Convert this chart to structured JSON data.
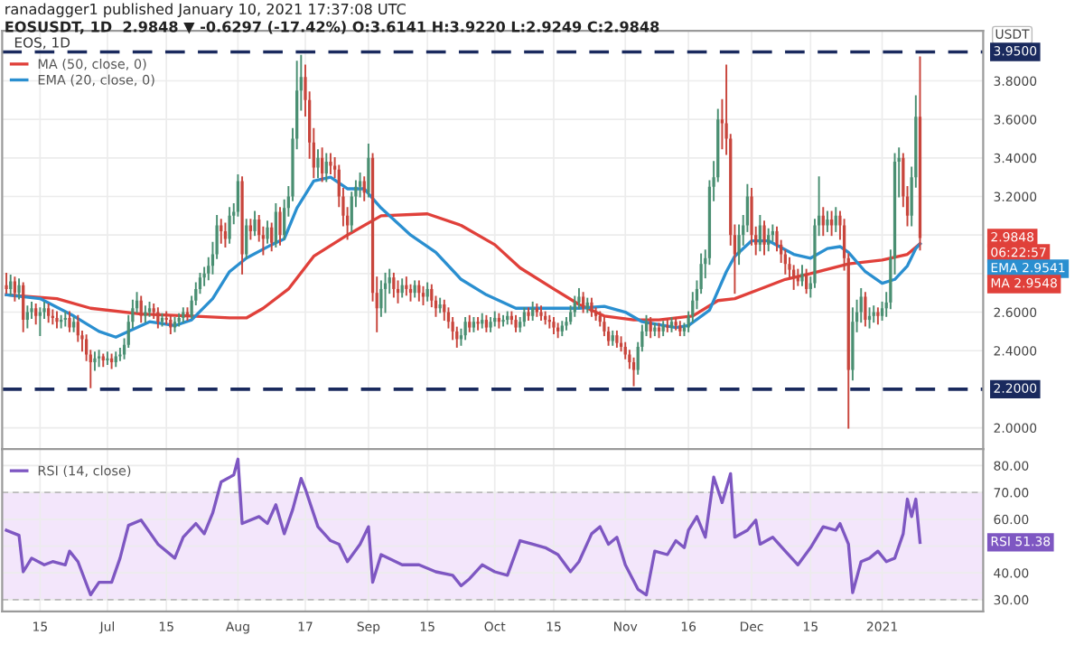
{
  "chart_data": [
    {
      "type": "candlestick",
      "title": "ranadagger1 published January 10, 2021 17:37:08 UTC",
      "subtitle": "EOSUSDT, 1D  2.9848 ▼ -0.6297 (-17.42%) O:3.6141 H:3.9220 L:2.9249 C:2.9848",
      "ylabel": "USDT",
      "x": [
        "2020-06-07",
        "2020-06-08",
        "2020-06-09",
        "2020-06-10",
        "2020-06-11",
        "2020-06-12",
        "2020-06-13",
        "2020-06-14",
        "2020-06-15",
        "2020-06-16",
        "2020-06-17",
        "2020-06-18",
        "2020-06-19",
        "2020-06-20",
        "2020-06-21",
        "2020-06-22",
        "2020-06-23",
        "2020-06-24",
        "2020-06-25",
        "2020-06-26",
        "2020-06-27",
        "2020-06-28",
        "2020-06-29",
        "2020-06-30",
        "2020-07-01",
        "2020-07-02",
        "2020-07-03",
        "2020-07-04",
        "2020-07-05",
        "2020-07-06",
        "2020-07-07",
        "2020-07-08",
        "2020-07-09",
        "2020-07-10",
        "2020-07-11",
        "2020-07-12",
        "2020-07-13",
        "2020-07-14",
        "2020-07-15",
        "2020-07-16",
        "2020-07-17",
        "2020-07-18",
        "2020-07-19",
        "2020-07-20",
        "2020-07-21",
        "2020-07-22",
        "2020-07-23",
        "2020-07-24",
        "2020-07-25",
        "2020-07-26",
        "2020-07-27",
        "2020-07-28",
        "2020-07-29",
        "2020-07-30",
        "2020-07-31",
        "2020-08-01",
        "2020-08-02",
        "2020-08-03",
        "2020-08-04",
        "2020-08-05",
        "2020-08-06",
        "2020-08-07",
        "2020-08-08",
        "2020-08-09",
        "2020-08-10",
        "2020-08-11",
        "2020-08-12",
        "2020-08-13",
        "2020-08-14",
        "2020-08-15",
        "2020-08-16",
        "2020-08-17",
        "2020-08-18",
        "2020-08-19",
        "2020-08-20",
        "2020-08-21",
        "2020-08-22",
        "2020-08-23",
        "2020-08-24",
        "2020-08-25",
        "2020-08-26",
        "2020-08-27",
        "2020-08-28",
        "2020-08-29",
        "2020-08-30",
        "2020-08-31",
        "2020-09-01",
        "2020-09-02",
        "2020-09-03",
        "2020-09-04",
        "2020-09-05",
        "2020-09-06",
        "2020-09-07",
        "2020-09-08",
        "2020-09-09",
        "2020-09-10",
        "2020-09-11",
        "2020-09-12",
        "2020-09-13",
        "2020-09-14",
        "2020-09-15",
        "2020-09-16",
        "2020-09-17",
        "2020-09-18",
        "2020-09-19",
        "2020-09-20",
        "2020-09-21",
        "2020-09-22",
        "2020-09-23",
        "2020-09-24",
        "2020-09-25",
        "2020-09-26",
        "2020-09-27",
        "2020-09-28",
        "2020-09-29",
        "2020-09-30",
        "2020-10-01",
        "2020-10-02",
        "2020-10-03",
        "2020-10-04",
        "2020-10-05",
        "2020-10-06",
        "2020-10-07",
        "2020-10-08",
        "2020-10-09",
        "2020-10-10",
        "2020-10-11",
        "2020-10-12",
        "2020-10-13",
        "2020-10-14",
        "2020-10-15",
        "2020-10-16",
        "2020-10-17",
        "2020-10-18",
        "2020-10-19",
        "2020-10-20",
        "2020-10-21",
        "2020-10-22",
        "2020-10-23",
        "2020-10-24",
        "2020-10-25",
        "2020-10-26",
        "2020-10-27",
        "2020-10-28",
        "2020-10-29",
        "2020-10-30",
        "2020-10-31",
        "2020-11-01",
        "2020-11-02",
        "2020-11-03",
        "2020-11-04",
        "2020-11-05",
        "2020-11-06",
        "2020-11-07",
        "2020-11-08",
        "2020-11-09",
        "2020-11-10",
        "2020-11-11",
        "2020-11-12",
        "2020-11-13",
        "2020-11-14",
        "2020-11-15",
        "2020-11-16",
        "2020-11-17",
        "2020-11-18",
        "2020-11-19",
        "2020-11-20",
        "2020-11-21",
        "2020-11-22",
        "2020-11-23",
        "2020-11-24",
        "2020-11-25",
        "2020-11-26",
        "2020-11-27",
        "2020-11-28",
        "2020-11-29",
        "2020-11-30",
        "2020-12-01",
        "2020-12-02",
        "2020-12-03",
        "2020-12-04",
        "2020-12-05",
        "2020-12-06",
        "2020-12-07",
        "2020-12-08",
        "2020-12-09",
        "2020-12-10",
        "2020-12-11",
        "2020-12-12",
        "2020-12-13",
        "2020-12-14",
        "2020-12-15",
        "2020-12-16",
        "2020-12-17",
        "2020-12-18",
        "2020-12-19",
        "2020-12-20",
        "2020-12-21",
        "2020-12-22",
        "2020-12-23",
        "2020-12-24",
        "2020-12-25",
        "2020-12-26",
        "2020-12-27",
        "2020-12-28",
        "2020-12-29",
        "2020-12-30",
        "2020-12-31",
        "2021-01-01",
        "2021-01-02",
        "2021-01-03",
        "2021-01-04",
        "2021-01-05",
        "2021-01-06",
        "2021-01-07",
        "2021-01-08",
        "2021-01-09",
        "2021-01-10"
      ],
      "ohlc": [
        [
          2.74,
          2.8,
          2.7,
          2.72
        ],
        [
          2.72,
          2.79,
          2.69,
          2.76
        ],
        [
          2.76,
          2.78,
          2.66,
          2.7
        ],
        [
          2.7,
          2.77,
          2.67,
          2.74
        ],
        [
          2.74,
          2.75,
          2.5,
          2.56
        ],
        [
          2.56,
          2.63,
          2.52,
          2.6
        ],
        [
          2.6,
          2.65,
          2.57,
          2.62
        ],
        [
          2.62,
          2.64,
          2.54,
          2.58
        ],
        [
          2.58,
          2.62,
          2.48,
          2.6
        ],
        [
          2.6,
          2.65,
          2.57,
          2.62
        ],
        [
          2.62,
          2.64,
          2.55,
          2.58
        ],
        [
          2.58,
          2.61,
          2.54,
          2.57
        ],
        [
          2.57,
          2.6,
          2.52,
          2.55
        ],
        [
          2.55,
          2.58,
          2.52,
          2.56
        ],
        [
          2.56,
          2.6,
          2.53,
          2.57
        ],
        [
          2.57,
          2.6,
          2.5,
          2.52
        ],
        [
          2.52,
          2.57,
          2.5,
          2.55
        ],
        [
          2.55,
          2.58,
          2.45,
          2.48
        ],
        [
          2.48,
          2.5,
          2.4,
          2.46
        ],
        [
          2.46,
          2.48,
          2.35,
          2.38
        ],
        [
          2.38,
          2.4,
          2.21,
          2.34
        ],
        [
          2.34,
          2.39,
          2.3,
          2.36
        ],
        [
          2.36,
          2.4,
          2.32,
          2.37
        ],
        [
          2.37,
          2.38,
          2.32,
          2.35
        ],
        [
          2.35,
          2.39,
          2.33,
          2.36
        ],
        [
          2.36,
          2.38,
          2.31,
          2.34
        ],
        [
          2.34,
          2.39,
          2.32,
          2.37
        ],
        [
          2.37,
          2.41,
          2.35,
          2.38
        ],
        [
          2.38,
          2.46,
          2.36,
          2.43
        ],
        [
          2.43,
          2.58,
          2.42,
          2.55
        ],
        [
          2.55,
          2.66,
          2.52,
          2.62
        ],
        [
          2.62,
          2.7,
          2.6,
          2.66
        ],
        [
          2.66,
          2.68,
          2.55,
          2.58
        ],
        [
          2.58,
          2.63,
          2.55,
          2.6
        ],
        [
          2.6,
          2.65,
          2.58,
          2.62
        ],
        [
          2.62,
          2.64,
          2.57,
          2.6
        ],
        [
          2.6,
          2.62,
          2.52,
          2.55
        ],
        [
          2.55,
          2.59,
          2.53,
          2.57
        ],
        [
          2.57,
          2.6,
          2.54,
          2.56
        ],
        [
          2.56,
          2.58,
          2.49,
          2.52
        ],
        [
          2.52,
          2.57,
          2.5,
          2.55
        ],
        [
          2.55,
          2.59,
          2.53,
          2.57
        ],
        [
          2.57,
          2.62,
          2.55,
          2.6
        ],
        [
          2.6,
          2.62,
          2.56,
          2.58
        ],
        [
          2.58,
          2.68,
          2.57,
          2.66
        ],
        [
          2.66,
          2.75,
          2.64,
          2.72
        ],
        [
          2.72,
          2.8,
          2.7,
          2.78
        ],
        [
          2.78,
          2.83,
          2.74,
          2.8
        ],
        [
          2.8,
          2.88,
          2.77,
          2.84
        ],
        [
          2.84,
          2.96,
          2.8,
          2.9
        ],
        [
          2.9,
          3.1,
          2.88,
          3.05
        ],
        [
          3.05,
          3.08,
          2.96,
          3.02
        ],
        [
          3.02,
          3.06,
          2.94,
          2.98
        ],
        [
          2.98,
          3.14,
          2.96,
          3.1
        ],
        [
          3.1,
          3.16,
          3.06,
          3.12
        ],
        [
          3.12,
          3.31,
          3.1,
          3.28
        ],
        [
          3.28,
          3.3,
          2.8,
          2.9
        ],
        [
          2.9,
          3.08,
          2.88,
          3.05
        ],
        [
          3.05,
          3.08,
          2.98,
          3.02
        ],
        [
          3.02,
          3.12,
          3.0,
          3.08
        ],
        [
          3.08,
          3.1,
          2.97,
          3.0
        ],
        [
          3.0,
          3.04,
          2.9,
          2.98
        ],
        [
          2.98,
          3.07,
          2.96,
          3.04
        ],
        [
          3.04,
          3.06,
          2.92,
          2.96
        ],
        [
          2.96,
          3.16,
          2.94,
          3.12
        ],
        [
          3.12,
          3.14,
          2.95,
          3.0
        ],
        [
          3.0,
          3.18,
          2.98,
          3.14
        ],
        [
          3.14,
          3.25,
          3.1,
          3.2
        ],
        [
          3.2,
          3.55,
          3.18,
          3.5
        ],
        [
          3.5,
          3.9,
          3.45,
          3.75
        ],
        [
          3.75,
          3.93,
          3.65,
          3.82
        ],
        [
          3.82,
          3.88,
          3.62,
          3.7
        ],
        [
          3.7,
          3.74,
          3.4,
          3.48
        ],
        [
          3.48,
          3.55,
          3.3,
          3.35
        ],
        [
          3.35,
          3.44,
          3.3,
          3.4
        ],
        [
          3.4,
          3.45,
          3.28,
          3.32
        ],
        [
          3.32,
          3.42,
          3.28,
          3.38
        ],
        [
          3.38,
          3.42,
          3.32,
          3.36
        ],
        [
          3.36,
          3.4,
          3.3,
          3.34
        ],
        [
          3.34,
          3.36,
          3.15,
          3.2
        ],
        [
          3.2,
          3.24,
          3.05,
          3.1
        ],
        [
          3.1,
          3.14,
          2.98,
          3.05
        ],
        [
          3.05,
          3.22,
          3.02,
          3.2
        ],
        [
          3.2,
          3.28,
          3.15,
          3.25
        ],
        [
          3.25,
          3.32,
          3.2,
          3.28
        ],
        [
          3.28,
          3.3,
          3.18,
          3.22
        ],
        [
          3.22,
          3.47,
          3.2,
          3.4
        ],
        [
          3.4,
          3.42,
          2.66,
          2.7
        ],
        [
          2.7,
          2.78,
          2.5,
          2.62
        ],
        [
          2.62,
          2.76,
          2.58,
          2.72
        ],
        [
          2.72,
          2.8,
          2.6,
          2.75
        ],
        [
          2.75,
          2.82,
          2.7,
          2.78
        ],
        [
          2.78,
          2.8,
          2.68,
          2.72
        ],
        [
          2.72,
          2.76,
          2.65,
          2.7
        ],
        [
          2.7,
          2.77,
          2.68,
          2.74
        ],
        [
          2.74,
          2.78,
          2.69,
          2.72
        ],
        [
          2.72,
          2.74,
          2.66,
          2.7
        ],
        [
          2.7,
          2.76,
          2.68,
          2.74
        ],
        [
          2.74,
          2.76,
          2.66,
          2.7
        ],
        [
          2.7,
          2.73,
          2.64,
          2.68
        ],
        [
          2.68,
          2.75,
          2.66,
          2.72
        ],
        [
          2.72,
          2.74,
          2.63,
          2.66
        ],
        [
          2.66,
          2.68,
          2.58,
          2.62
        ],
        [
          2.62,
          2.67,
          2.6,
          2.64
        ],
        [
          2.64,
          2.66,
          2.56,
          2.6
        ],
        [
          2.6,
          2.62,
          2.52,
          2.55
        ],
        [
          2.55,
          2.57,
          2.46,
          2.5
        ],
        [
          2.5,
          2.52,
          2.42,
          2.46
        ],
        [
          2.46,
          2.51,
          2.43,
          2.48
        ],
        [
          2.48,
          2.57,
          2.46,
          2.55
        ],
        [
          2.55,
          2.58,
          2.5,
          2.52
        ],
        [
          2.52,
          2.57,
          2.5,
          2.55
        ],
        [
          2.55,
          2.57,
          2.51,
          2.54
        ],
        [
          2.54,
          2.59,
          2.52,
          2.56
        ],
        [
          2.56,
          2.58,
          2.5,
          2.52
        ],
        [
          2.52,
          2.57,
          2.5,
          2.55
        ],
        [
          2.55,
          2.6,
          2.53,
          2.57
        ],
        [
          2.57,
          2.59,
          2.52,
          2.55
        ],
        [
          2.55,
          2.58,
          2.53,
          2.56
        ],
        [
          2.56,
          2.6,
          2.54,
          2.58
        ],
        [
          2.58,
          2.6,
          2.54,
          2.56
        ],
        [
          2.56,
          2.58,
          2.5,
          2.52
        ],
        [
          2.52,
          2.57,
          2.5,
          2.55
        ],
        [
          2.55,
          2.62,
          2.53,
          2.6
        ],
        [
          2.6,
          2.62,
          2.56,
          2.58
        ],
        [
          2.58,
          2.65,
          2.56,
          2.62
        ],
        [
          2.62,
          2.64,
          2.58,
          2.6
        ],
        [
          2.6,
          2.63,
          2.56,
          2.58
        ],
        [
          2.58,
          2.6,
          2.54,
          2.56
        ],
        [
          2.56,
          2.58,
          2.52,
          2.55
        ],
        [
          2.55,
          2.57,
          2.49,
          2.52
        ],
        [
          2.52,
          2.54,
          2.47,
          2.5
        ],
        [
          2.5,
          2.55,
          2.48,
          2.53
        ],
        [
          2.53,
          2.57,
          2.51,
          2.55
        ],
        [
          2.55,
          2.63,
          2.54,
          2.6
        ],
        [
          2.6,
          2.68,
          2.58,
          2.65
        ],
        [
          2.65,
          2.72,
          2.62,
          2.68
        ],
        [
          2.68,
          2.7,
          2.6,
          2.62
        ],
        [
          2.62,
          2.67,
          2.6,
          2.65
        ],
        [
          2.65,
          2.67,
          2.58,
          2.6
        ],
        [
          2.6,
          2.62,
          2.56,
          2.58
        ],
        [
          2.58,
          2.6,
          2.53,
          2.55
        ],
        [
          2.55,
          2.57,
          2.48,
          2.5
        ],
        [
          2.5,
          2.52,
          2.43,
          2.45
        ],
        [
          2.45,
          2.5,
          2.43,
          2.48
        ],
        [
          2.48,
          2.5,
          2.42,
          2.44
        ],
        [
          2.44,
          2.47,
          2.4,
          2.42
        ],
        [
          2.42,
          2.44,
          2.36,
          2.38
        ],
        [
          2.38,
          2.4,
          2.31,
          2.34
        ],
        [
          2.34,
          2.36,
          2.22,
          2.3
        ],
        [
          2.3,
          2.44,
          2.28,
          2.42
        ],
        [
          2.42,
          2.53,
          2.4,
          2.5
        ],
        [
          2.5,
          2.58,
          2.48,
          2.55
        ],
        [
          2.55,
          2.57,
          2.47,
          2.5
        ],
        [
          2.5,
          2.54,
          2.48,
          2.52
        ],
        [
          2.52,
          2.54,
          2.47,
          2.5
        ],
        [
          2.5,
          2.55,
          2.48,
          2.53
        ],
        [
          2.53,
          2.56,
          2.5,
          2.52
        ],
        [
          2.52,
          2.57,
          2.5,
          2.55
        ],
        [
          2.55,
          2.57,
          2.51,
          2.53
        ],
        [
          2.53,
          2.55,
          2.48,
          2.5
        ],
        [
          2.5,
          2.54,
          2.48,
          2.52
        ],
        [
          2.52,
          2.6,
          2.5,
          2.58
        ],
        [
          2.58,
          2.7,
          2.55,
          2.66
        ],
        [
          2.66,
          2.76,
          2.62,
          2.72
        ],
        [
          2.72,
          2.9,
          2.7,
          2.85
        ],
        [
          2.85,
          2.92,
          2.78,
          2.88
        ],
        [
          2.88,
          3.28,
          2.85,
          3.25
        ],
        [
          3.25,
          3.38,
          3.18,
          3.3
        ],
        [
          3.3,
          3.65,
          3.28,
          3.6
        ],
        [
          3.6,
          3.7,
          3.45,
          3.58
        ],
        [
          3.58,
          3.88,
          3.42,
          3.5
        ],
        [
          3.5,
          3.52,
          2.95,
          3.0
        ],
        [
          3.0,
          3.05,
          2.7,
          2.9
        ],
        [
          2.9,
          3.05,
          2.85,
          3.0
        ],
        [
          3.0,
          3.1,
          2.95,
          3.05
        ],
        [
          3.05,
          3.26,
          3.02,
          3.2
        ],
        [
          3.2,
          3.24,
          2.95,
          3.0
        ],
        [
          3.0,
          3.04,
          2.9,
          2.95
        ],
        [
          2.95,
          3.1,
          2.92,
          3.05
        ],
        [
          3.05,
          3.07,
          2.9,
          2.95
        ],
        [
          2.95,
          3.03,
          2.92,
          3.0
        ],
        [
          3.0,
          3.05,
          2.97,
          3.02
        ],
        [
          3.02,
          3.04,
          2.92,
          2.95
        ],
        [
          2.95,
          2.97,
          2.86,
          2.9
        ],
        [
          2.9,
          2.92,
          2.8,
          2.85
        ],
        [
          2.85,
          2.88,
          2.78,
          2.82
        ],
        [
          2.82,
          2.84,
          2.72,
          2.78
        ],
        [
          2.78,
          2.82,
          2.74,
          2.76
        ],
        [
          2.76,
          2.84,
          2.74,
          2.8
        ],
        [
          2.8,
          2.82,
          2.7,
          2.72
        ],
        [
          2.72,
          2.78,
          2.68,
          2.75
        ],
        [
          2.75,
          3.08,
          2.73,
          3.05
        ],
        [
          3.05,
          3.3,
          3.0,
          3.1
        ],
        [
          3.1,
          3.14,
          3.0,
          3.05
        ],
        [
          3.05,
          3.12,
          3.02,
          3.08
        ],
        [
          3.08,
          3.12,
          3.0,
          3.05
        ],
        [
          3.05,
          3.14,
          3.02,
          3.1
        ],
        [
          3.1,
          3.12,
          2.98,
          3.05
        ],
        [
          3.05,
          3.08,
          2.82,
          2.88
        ],
        [
          2.88,
          2.9,
          2.0,
          2.3
        ],
        [
          2.3,
          2.62,
          2.25,
          2.55
        ],
        [
          2.55,
          2.66,
          2.5,
          2.6
        ],
        [
          2.6,
          2.72,
          2.55,
          2.68
        ],
        [
          2.68,
          2.7,
          2.53,
          2.56
        ],
        [
          2.56,
          2.62,
          2.52,
          2.58
        ],
        [
          2.58,
          2.63,
          2.55,
          2.6
        ],
        [
          2.6,
          2.62,
          2.54,
          2.58
        ],
        [
          2.58,
          2.65,
          2.56,
          2.62
        ],
        [
          2.62,
          2.7,
          2.58,
          2.65
        ],
        [
          2.65,
          2.92,
          2.62,
          2.88
        ],
        [
          2.88,
          3.42,
          2.8,
          3.38
        ],
        [
          3.38,
          3.45,
          3.2,
          3.4
        ],
        [
          3.4,
          3.42,
          3.15,
          3.2
        ],
        [
          3.2,
          3.25,
          3.05,
          3.1
        ],
        [
          3.1,
          3.35,
          3.05,
          3.3
        ],
        [
          3.3,
          3.72,
          3.25,
          3.6141
        ],
        [
          3.6141,
          3.922,
          2.9249,
          2.9848
        ]
      ],
      "series": [
        {
          "name": "MA (50, close, 0)",
          "type": "line",
          "color": "#e0403a",
          "x": [
            "2020-06-07",
            "2020-06-19",
            "2020-06-27",
            "2020-07-09",
            "2020-07-21",
            "2020-07-30",
            "2020-08-03",
            "2020-08-07",
            "2020-08-13",
            "2020-08-19",
            "2020-08-27",
            "2020-09-04",
            "2020-09-15",
            "2020-09-23",
            "2020-10-01",
            "2020-10-07",
            "2020-10-15",
            "2020-10-21",
            "2020-10-27",
            "2020-11-03",
            "2020-11-09",
            "2020-11-17",
            "2020-11-23",
            "2020-11-27",
            "2020-12-03",
            "2020-12-09",
            "2020-12-15",
            "2020-12-24",
            "2021-01-01",
            "2021-01-07",
            "2021-01-10"
          ],
          "values": [
            2.69,
            2.67,
            2.62,
            2.59,
            2.58,
            2.57,
            2.57,
            2.62,
            2.72,
            2.89,
            3.0,
            3.1,
            3.11,
            3.05,
            2.95,
            2.83,
            2.72,
            2.64,
            2.58,
            2.56,
            2.56,
            2.58,
            2.66,
            2.67,
            2.72,
            2.77,
            2.8,
            2.85,
            2.87,
            2.9,
            2.9548
          ]
        },
        {
          "name": "EMA (20, close, 0)",
          "type": "line",
          "color": "#2a8fd0",
          "x": [
            "2020-06-07",
            "2020-06-15",
            "2020-06-23",
            "2020-06-29",
            "2020-07-03",
            "2020-07-07",
            "2020-07-11",
            "2020-07-17",
            "2020-07-21",
            "2020-07-26",
            "2020-07-30",
            "2020-08-03",
            "2020-08-09",
            "2020-08-12",
            "2020-08-15",
            "2020-08-19",
            "2020-08-23",
            "2020-08-27",
            "2020-08-31",
            "2020-09-04",
            "2020-09-11",
            "2020-09-17",
            "2020-09-23",
            "2020-09-29",
            "2020-10-06",
            "2020-10-15",
            "2020-10-21",
            "2020-10-27",
            "2020-11-01",
            "2020-11-05",
            "2020-11-13",
            "2020-11-16",
            "2020-11-21",
            "2020-11-25",
            "2020-11-27",
            "2020-12-01",
            "2020-12-05",
            "2020-12-11",
            "2020-12-15",
            "2020-12-19",
            "2020-12-22",
            "2020-12-24",
            "2020-12-28",
            "2021-01-01",
            "2021-01-04",
            "2021-01-07",
            "2021-01-09",
            "2021-01-10"
          ],
          "values": [
            2.69,
            2.67,
            2.58,
            2.5,
            2.47,
            2.51,
            2.55,
            2.53,
            2.56,
            2.67,
            2.81,
            2.88,
            2.95,
            2.98,
            3.14,
            3.28,
            3.3,
            3.24,
            3.24,
            3.14,
            3.0,
            2.91,
            2.77,
            2.69,
            2.62,
            2.62,
            2.62,
            2.63,
            2.6,
            2.55,
            2.52,
            2.53,
            2.61,
            2.81,
            2.89,
            2.97,
            2.97,
            2.9,
            2.88,
            2.93,
            2.94,
            2.91,
            2.81,
            2.75,
            2.77,
            2.84,
            2.93,
            2.9541
          ]
        }
      ],
      "annotations": [
        "EOS, 1D",
        "2.9848",
        "06:22:57",
        "EMA 2.9541",
        "MA 2.9548"
      ],
      "xticks": [
        {
          "value": "2020-06-15",
          "label": null
        },
        {
          "value": "2020-07-01",
          "label": null
        },
        {
          "value": "2020-07-15",
          "label": null
        },
        {
          "value": "2020-08-01",
          "label": null
        },
        {
          "value": "2020-08-17",
          "label": null
        },
        {
          "value": "2020-09-01",
          "label": null
        },
        {
          "value": "2020-09-15",
          "label": null
        },
        {
          "value": "2020-10-01",
          "label": null
        },
        {
          "value": "2020-10-15",
          "label": null
        },
        {
          "value": "2020-11-01",
          "label": null
        },
        {
          "value": "2020-11-16",
          "label": null
        },
        {
          "value": "2020-12-01",
          "label": null
        },
        {
          "value": "2020-12-15",
          "label": null
        },
        {
          "value": "2021-01-01",
          "label": null
        }
      ],
      "ref_lines": [
        {
          "axis": "y",
          "value": 3.95,
          "label": "3.9500",
          "color": "#1a2a5e",
          "line_style": "dashed"
        },
        {
          "axis": "y",
          "value": 2.2,
          "label": "2.2000",
          "color": "#1a2a5e",
          "line_style": "dashed"
        }
      ],
      "xlim": [
        "2020-06-06",
        "2021-01-25"
      ],
      "ylim": [
        1.89,
        4.06
      ],
      "yticks": [
        {
          "value": 2.0,
          "label": "2.0000"
        },
        {
          "value": 2.4,
          "label": "2.4000"
        },
        {
          "value": 2.6,
          "label": "2.6000"
        },
        {
          "value": 2.8,
          "label": null
        },
        {
          "value": 3.0,
          "label": null
        },
        {
          "value": 3.2,
          "label": "3.2000"
        },
        {
          "value": 3.4,
          "label": "3.4000"
        },
        {
          "value": 3.6,
          "label": "3.6000"
        },
        {
          "value": 3.8,
          "label": "3.8000"
        }
      ],
      "tick_labels": "y",
      "grid": true,
      "legend": "top left"
    },
    {
      "type": "line",
      "series": [
        {
          "name": "RSI (14, close)",
          "color": "#7e57c2",
          "x": [
            "2020-06-07",
            "2020-06-10",
            "2020-06-11",
            "2020-06-13",
            "2020-06-16",
            "2020-06-18",
            "2020-06-21",
            "2020-06-22",
            "2020-06-24",
            "2020-06-27",
            "2020-06-29",
            "2020-07-02",
            "2020-07-04",
            "2020-07-06",
            "2020-07-09",
            "2020-07-13",
            "2020-07-17",
            "2020-07-19",
            "2020-07-22",
            "2020-07-24",
            "2020-07-26",
            "2020-07-28",
            "2020-07-31",
            "2020-08-01",
            "2020-08-02",
            "2020-08-06",
            "2020-08-08",
            "2020-08-10",
            "2020-08-12",
            "2020-08-14",
            "2020-08-16",
            "2020-08-17",
            "2020-08-20",
            "2020-08-23",
            "2020-08-25",
            "2020-08-27",
            "2020-08-30",
            "2020-09-01",
            "2020-09-02",
            "2020-09-04",
            "2020-09-09",
            "2020-09-13",
            "2020-09-17",
            "2020-09-21",
            "2020-09-23",
            "2020-09-25",
            "2020-09-28",
            "2020-10-01",
            "2020-10-04",
            "2020-10-07",
            "2020-10-10",
            "2020-10-13",
            "2020-10-16",
            "2020-10-19",
            "2020-10-21",
            "2020-10-24",
            "2020-10-26",
            "2020-10-28",
            "2020-10-30",
            "2020-11-01",
            "2020-11-04",
            "2020-11-06",
            "2020-11-08",
            "2020-11-11",
            "2020-11-13",
            "2020-11-15",
            "2020-11-16",
            "2020-11-18",
            "2020-11-20",
            "2020-11-22",
            "2020-11-24",
            "2020-11-26",
            "2020-11-27",
            "2020-11-30",
            "2020-12-02",
            "2020-12-03",
            "2020-12-06",
            "2020-12-09",
            "2020-12-12",
            "2020-12-15",
            "2020-12-18",
            "2020-12-21",
            "2020-12-22",
            "2020-12-24",
            "2020-12-25",
            "2020-12-27",
            "2020-12-29",
            "2020-12-31",
            "2021-01-02",
            "2021-01-04",
            "2021-01-06",
            "2021-01-07",
            "2021-01-08",
            "2021-01-09",
            "2021-01-10"
          ],
          "values": [
            55.9,
            54,
            40.4,
            45.5,
            43,
            44.2,
            43,
            48.1,
            44.2,
            31.8,
            36.5,
            36.5,
            45.5,
            57.7,
            59.7,
            50.7,
            45.5,
            53.3,
            58.4,
            54.6,
            62.3,
            73.9,
            76.5,
            82.4,
            58.4,
            61,
            58.4,
            65.4,
            54.6,
            63.6,
            75.2,
            71.3,
            57.2,
            52,
            50.7,
            44.2,
            50.7,
            57.2,
            36.5,
            46.8,
            43,
            43,
            40.4,
            39.1,
            35.2,
            37.8,
            43,
            40.4,
            39.1,
            52,
            50.7,
            49.4,
            46.8,
            40.4,
            44.2,
            54.6,
            57.2,
            50.7,
            53.3,
            43,
            33.9,
            31.8,
            48.1,
            46.8,
            52,
            49.4,
            55.9,
            61,
            53.3,
            75.7,
            66.2,
            77,
            53.3,
            55.9,
            59.7,
            50.7,
            53.3,
            48.1,
            43,
            49.4,
            57.2,
            55.9,
            58.4,
            50.7,
            32.6,
            44.2,
            45.5,
            48.1,
            44.2,
            45.5,
            54.6,
            67.5,
            61,
            67.5,
            51.38
          ]
        }
      ],
      "annotations": [
        "RSI 51.38"
      ],
      "bands": [
        {
          "axis": "y",
          "from": 30,
          "to": 70,
          "color": "#f3e6fb"
        }
      ],
      "xlim": [
        "2020-06-06",
        "2021-01-25"
      ],
      "ylim": [
        25.6,
        86.2
      ],
      "xticks": [
        {
          "value": "2020-06-15",
          "label": "15"
        },
        {
          "value": "2020-07-01",
          "label": "Jul"
        },
        {
          "value": "2020-07-15",
          "label": "15"
        },
        {
          "value": "2020-08-01",
          "label": "Aug"
        },
        {
          "value": "2020-08-17",
          "label": "17"
        },
        {
          "value": "2020-09-01",
          "label": "Sep"
        },
        {
          "value": "2020-09-15",
          "label": "15"
        },
        {
          "value": "2020-10-01",
          "label": "Oct"
        },
        {
          "value": "2020-10-15",
          "label": "15"
        },
        {
          "value": "2020-11-01",
          "label": "Nov"
        },
        {
          "value": "2020-11-16",
          "label": "16"
        },
        {
          "value": "2020-12-01",
          "label": "Dec"
        },
        {
          "value": "2020-12-15",
          "label": "15"
        },
        {
          "value": "2021-01-01",
          "label": "2021"
        }
      ],
      "yticks": [
        {
          "value": 30,
          "label": "30.00"
        },
        {
          "value": 40,
          "label": "40.00"
        },
        {
          "value": 50,
          "label": null
        },
        {
          "value": 60,
          "label": "60.00"
        },
        {
          "value": 70,
          "label": "70.00"
        },
        {
          "value": 80,
          "label": "80.00"
        }
      ],
      "grid": true,
      "legend": "top left"
    }
  ]
}
